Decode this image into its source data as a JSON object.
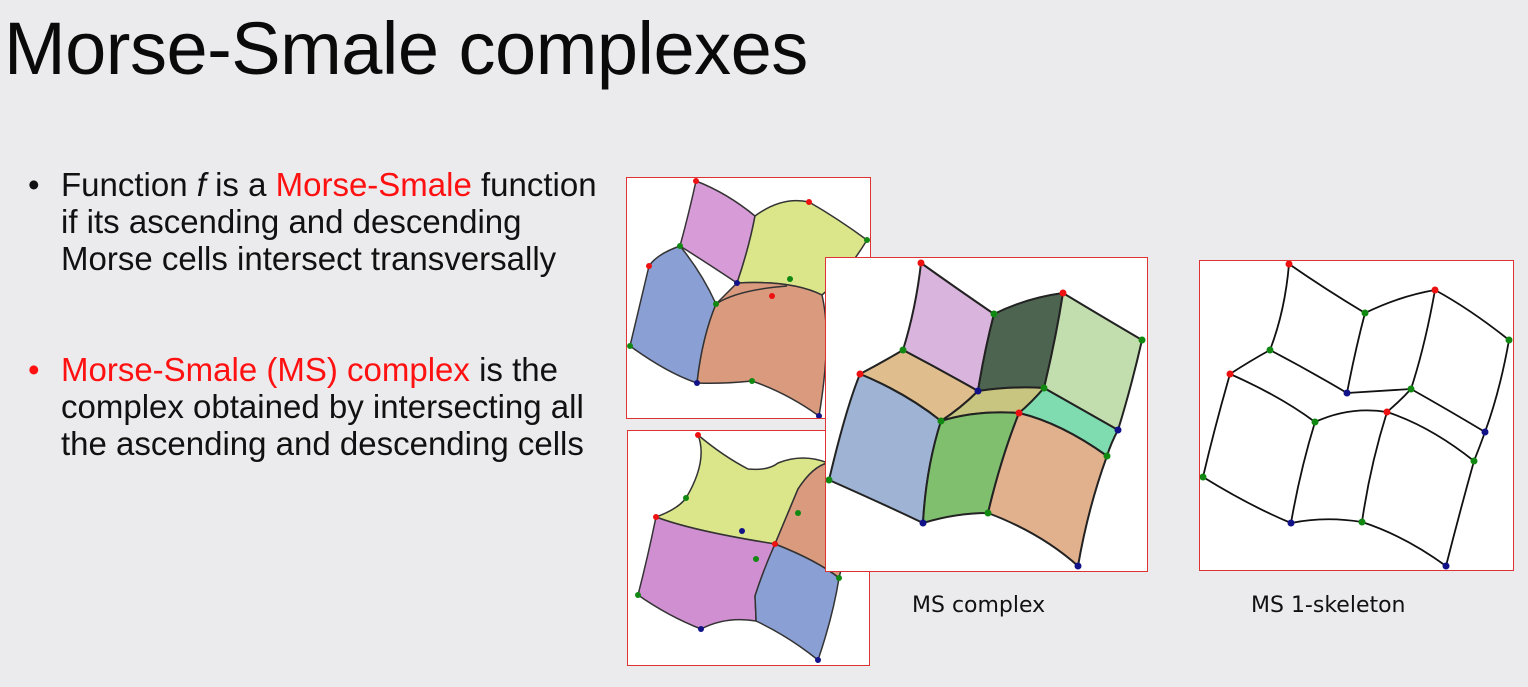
{
  "slide": {
    "title": "Morse-Smale complexes",
    "bullet1": {
      "marker": "•",
      "pre": "Function ",
      "var": "f",
      "mid": " is a ",
      "highlight": "Morse-Smale",
      "post": " function if its ascending and descending Morse cells intersect transversally"
    },
    "bullet2": {
      "marker": "•",
      "highlight": "Morse-Smale (MS) complex",
      "post": " is the complex obtained by intersecting all the ascending and descending cells"
    },
    "captions": {
      "complex": "MS complex",
      "skeleton": "MS 1-skeleton"
    }
  },
  "colors": {
    "maximum": "#ee1111",
    "saddle": "#118811",
    "minimum": "#111188",
    "highlight": "#ff1111",
    "panel_border": "#dd3333"
  }
}
